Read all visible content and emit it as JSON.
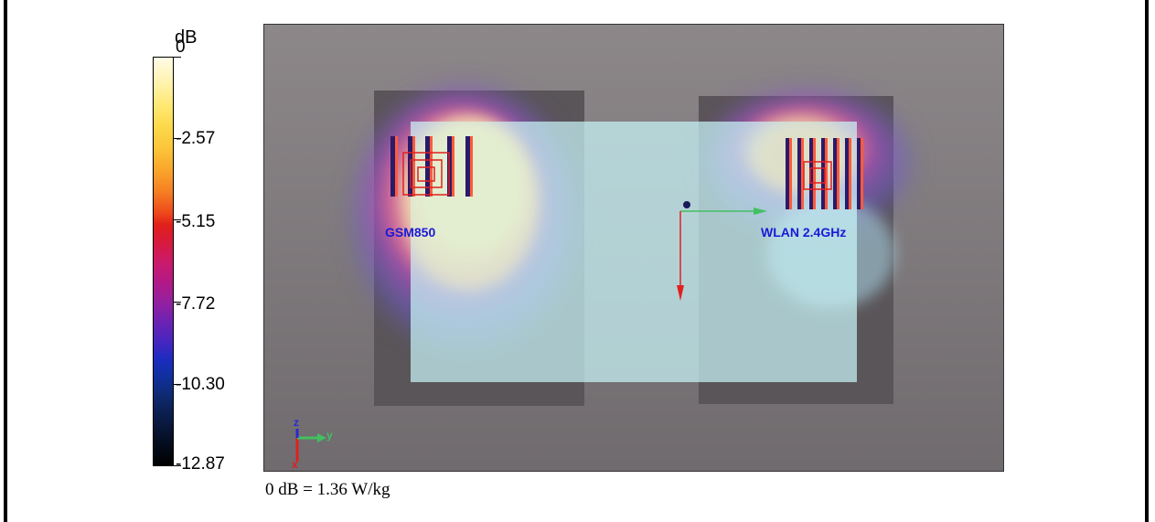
{
  "colorbar": {
    "unit": "dB",
    "ticks": [
      {
        "label": "0",
        "value": 0
      },
      {
        "label": "-2.57",
        "value": -2.57
      },
      {
        "label": "-5.15",
        "value": -5.15
      },
      {
        "label": "-7.72",
        "value": -7.72
      },
      {
        "label": "-10.30",
        "value": -10.3
      },
      {
        "label": "-12.87",
        "value": -12.87
      }
    ],
    "range": [
      -12.87,
      0
    ]
  },
  "labels": {
    "antenna_left": "GSM850",
    "antenna_right": "WLAN 2.4GHz"
  },
  "axes": {
    "z": "z",
    "y": "y",
    "x": "x"
  },
  "colors": {
    "background": "#7d787b",
    "phantom": "#c8f4f6",
    "label": "#1a1ad6",
    "arrow_green": "#40c060",
    "arrow_red": "#e02020"
  },
  "note": "0 dB = 1.36 W/kg"
}
